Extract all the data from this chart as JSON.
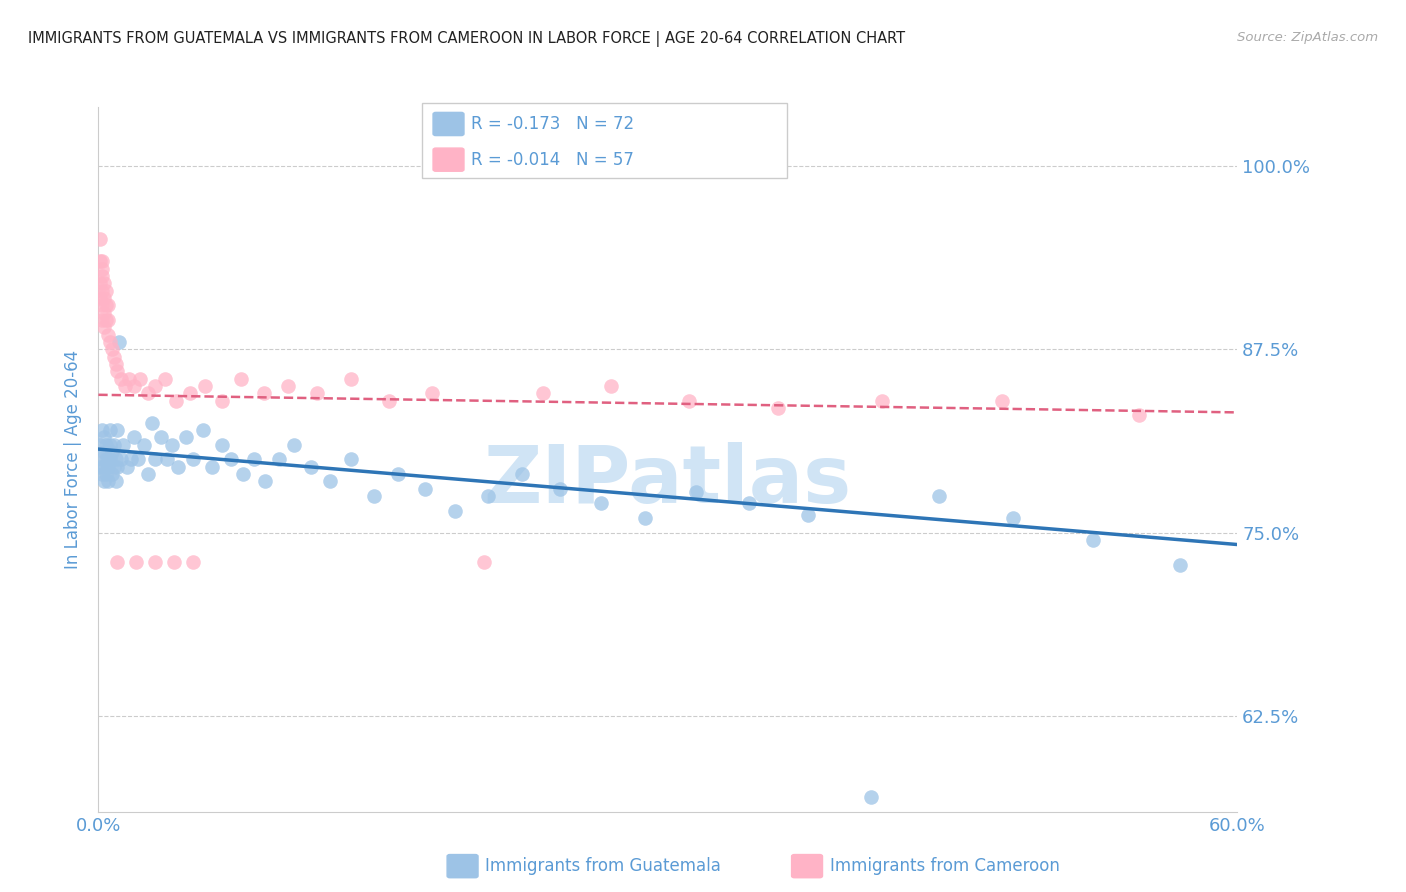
{
  "title": "IMMIGRANTS FROM GUATEMALA VS IMMIGRANTS FROM CAMEROON IN LABOR FORCE | AGE 20-64 CORRELATION CHART",
  "source": "Source: ZipAtlas.com",
  "ylabel": "In Labor Force | Age 20-64",
  "ytick_labels": [
    "100.0%",
    "87.5%",
    "75.0%",
    "62.5%"
  ],
  "ytick_values": [
    1.0,
    0.875,
    0.75,
    0.625
  ],
  "xlim": [
    0.0,
    0.6
  ],
  "ylim": [
    0.56,
    1.04
  ],
  "title_color": "#222222",
  "axis_label_color": "#5b9bd5",
  "tick_label_color": "#5b9bd5",
  "grid_color": "#cccccc",
  "background_color": "#ffffff",
  "guatemala_color": "#9dc3e6",
  "cameroon_color": "#ffb3c6",
  "guatemala_line_color": "#2e75b6",
  "cameroon_line_color": "#e06080",
  "legend_r_guatemala": "-0.173",
  "legend_n_guatemala": "72",
  "legend_r_cameroon": "-0.014",
  "legend_n_cameroon": "57",
  "legend_label_guatemala": "Immigrants from Guatemala",
  "legend_label_cameroon": "Immigrants from Cameroon",
  "guatemala_x": [
    0.001,
    0.001,
    0.002,
    0.002,
    0.002,
    0.003,
    0.003,
    0.003,
    0.003,
    0.004,
    0.004,
    0.004,
    0.005,
    0.005,
    0.005,
    0.006,
    0.006,
    0.006,
    0.007,
    0.007,
    0.008,
    0.008,
    0.009,
    0.009,
    0.01,
    0.01,
    0.011,
    0.012,
    0.013,
    0.015,
    0.017,
    0.019,
    0.021,
    0.024,
    0.026,
    0.028,
    0.03,
    0.033,
    0.036,
    0.039,
    0.042,
    0.046,
    0.05,
    0.055,
    0.06,
    0.065,
    0.07,
    0.076,
    0.082,
    0.088,
    0.095,
    0.103,
    0.112,
    0.122,
    0.133,
    0.145,
    0.158,
    0.172,
    0.188,
    0.205,
    0.223,
    0.243,
    0.265,
    0.288,
    0.315,
    0.343,
    0.374,
    0.407,
    0.443,
    0.482,
    0.524,
    0.57
  ],
  "guatemala_y": [
    0.795,
    0.81,
    0.8,
    0.79,
    0.82,
    0.795,
    0.785,
    0.805,
    0.815,
    0.8,
    0.79,
    0.81,
    0.795,
    0.785,
    0.8,
    0.81,
    0.82,
    0.8,
    0.79,
    0.805,
    0.795,
    0.81,
    0.8,
    0.785,
    0.82,
    0.795,
    0.88,
    0.8,
    0.81,
    0.795,
    0.8,
    0.815,
    0.8,
    0.81,
    0.79,
    0.825,
    0.8,
    0.815,
    0.8,
    0.81,
    0.795,
    0.815,
    0.8,
    0.82,
    0.795,
    0.81,
    0.8,
    0.79,
    0.8,
    0.785,
    0.8,
    0.81,
    0.795,
    0.785,
    0.8,
    0.775,
    0.79,
    0.78,
    0.765,
    0.775,
    0.79,
    0.78,
    0.77,
    0.76,
    0.778,
    0.77,
    0.762,
    0.57,
    0.775,
    0.76,
    0.745,
    0.728
  ],
  "cameroon_x": [
    0.001,
    0.001,
    0.001,
    0.001,
    0.002,
    0.002,
    0.002,
    0.002,
    0.002,
    0.002,
    0.003,
    0.003,
    0.003,
    0.003,
    0.004,
    0.004,
    0.004,
    0.005,
    0.005,
    0.005,
    0.006,
    0.007,
    0.008,
    0.009,
    0.01,
    0.012,
    0.014,
    0.016,
    0.019,
    0.022,
    0.026,
    0.03,
    0.035,
    0.041,
    0.048,
    0.056,
    0.065,
    0.075,
    0.087,
    0.1,
    0.115,
    0.133,
    0.153,
    0.176,
    0.203,
    0.234,
    0.27,
    0.311,
    0.358,
    0.413,
    0.476,
    0.548,
    0.01,
    0.02,
    0.03,
    0.04,
    0.05
  ],
  "cameroon_y": [
    0.95,
    0.935,
    0.92,
    0.91,
    0.935,
    0.925,
    0.915,
    0.905,
    0.895,
    0.93,
    0.92,
    0.91,
    0.9,
    0.89,
    0.915,
    0.905,
    0.895,
    0.905,
    0.895,
    0.885,
    0.88,
    0.875,
    0.87,
    0.865,
    0.86,
    0.855,
    0.85,
    0.855,
    0.85,
    0.855,
    0.845,
    0.85,
    0.855,
    0.84,
    0.845,
    0.85,
    0.84,
    0.855,
    0.845,
    0.85,
    0.845,
    0.855,
    0.84,
    0.845,
    0.73,
    0.845,
    0.85,
    0.84,
    0.835,
    0.84,
    0.84,
    0.83,
    0.73,
    0.73,
    0.73,
    0.73,
    0.73
  ],
  "watermark": "ZIPatlas",
  "watermark_color": "#d0e4f5"
}
